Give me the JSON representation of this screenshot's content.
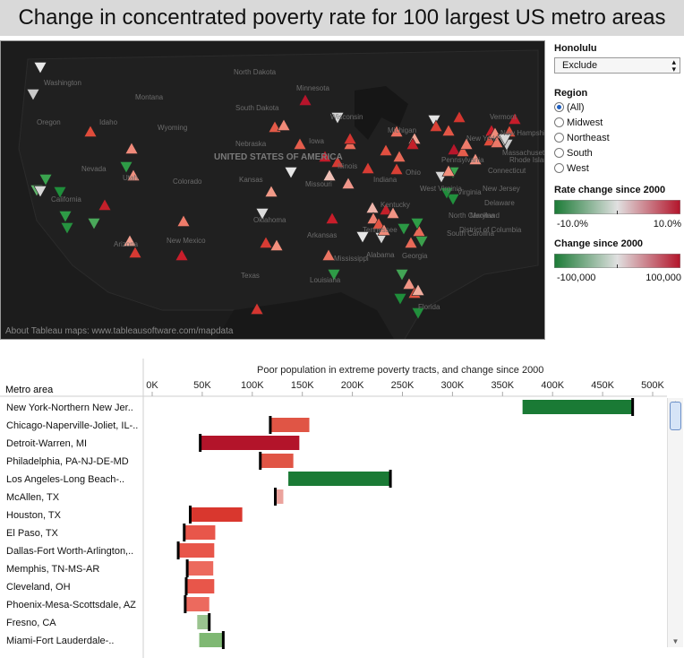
{
  "title": "Change in concentrated poverty rate for 100 largest US metro areas",
  "map": {
    "credit": "About Tableau maps: www.tableausoftware.com/mapdata",
    "labels": [
      "Washington",
      "Montana",
      "North Dakota",
      "South Dakota",
      "Wyoming",
      "Nebraska",
      "Nevada",
      "Utah",
      "Colorado",
      "Kansas",
      "Oklahoma",
      "UNITED STATES OF AMERICA",
      "Iowa",
      "Missouri",
      "Illinois",
      "Ohio",
      "Michigan",
      "Wisconsin",
      "Minnesota",
      "Indiana",
      "Kentucky",
      "Tennessee",
      "Arkansas",
      "Mississippi",
      "Alabama",
      "Georgia",
      "Texas",
      "New Mexico",
      "Arizona",
      "California",
      "Idaho",
      "Oregon",
      "Louisiana",
      "Florida",
      "South Carolina",
      "North Carolina",
      "Virginia",
      "West Virginia",
      "Pennsylvania",
      "New York",
      "Vermont",
      "New Hampshire",
      "Massachusetts",
      "Connecticut",
      "Rhode Island",
      "New Jersey",
      "Delaware",
      "Maryland",
      "District of Columbia"
    ],
    "markers": [
      {
        "dir": "down",
        "color": "#e8e8e8"
      },
      {
        "dir": "down",
        "color": "#c9c9c9"
      },
      {
        "dir": "up",
        "color": "#e04c3b"
      },
      {
        "dir": "up",
        "color": "#f08a7a"
      },
      {
        "dir": "down",
        "color": "#2e9b46"
      },
      {
        "dir": "up",
        "color": "#f09080"
      },
      {
        "dir": "down",
        "color": "#3aa34e"
      },
      {
        "dir": "down",
        "color": "#61b56c"
      },
      {
        "dir": "down",
        "color": "#d8d8d8"
      },
      {
        "dir": "down",
        "color": "#1f8e3b"
      },
      {
        "dir": "up",
        "color": "#c4202a"
      },
      {
        "dir": "down",
        "color": "#2e9b46"
      },
      {
        "dir": "down",
        "color": "#4aa85a"
      },
      {
        "dir": "down",
        "color": "#26923f"
      },
      {
        "dir": "up",
        "color": "#f2a090"
      },
      {
        "dir": "up",
        "color": "#d63a33"
      },
      {
        "dir": "up",
        "color": "#c91e2b"
      },
      {
        "dir": "up",
        "color": "#e35a48"
      },
      {
        "dir": "up",
        "color": "#ee7b6a"
      },
      {
        "dir": "down",
        "color": "#dcdcdc"
      },
      {
        "dir": "up",
        "color": "#f29a88"
      },
      {
        "dir": "up",
        "color": "#d83c34"
      },
      {
        "dir": "up",
        "color": "#c81d2a"
      },
      {
        "dir": "up",
        "color": "#e55d4c"
      },
      {
        "dir": "down",
        "color": "#e6e6e6"
      },
      {
        "dir": "up",
        "color": "#b7142b"
      },
      {
        "dir": "up",
        "color": "#f08a78"
      },
      {
        "dir": "up",
        "color": "#ec7563"
      },
      {
        "dir": "up",
        "color": "#f28f7c"
      },
      {
        "dir": "down",
        "color": "#1f8e3b"
      },
      {
        "dir": "up",
        "color": "#d43530"
      },
      {
        "dir": "up",
        "color": "#e96a58"
      },
      {
        "dir": "up",
        "color": "#d63a33"
      },
      {
        "dir": "down",
        "color": "#e6e6e6"
      },
      {
        "dir": "up",
        "color": "#eeb5ab"
      },
      {
        "dir": "up",
        "color": "#c21b2a"
      },
      {
        "dir": "up",
        "color": "#f0968a"
      },
      {
        "dir": "up",
        "color": "#d83c34"
      },
      {
        "dir": "up",
        "color": "#e24f40"
      },
      {
        "dir": "up",
        "color": "#c4202a"
      },
      {
        "dir": "down",
        "color": "#d4d4d4"
      },
      {
        "dir": "up",
        "color": "#d84035"
      },
      {
        "dir": "up",
        "color": "#ec7060"
      },
      {
        "dir": "up",
        "color": "#f3a393"
      },
      {
        "dir": "down",
        "color": "#3b9f4c"
      },
      {
        "dir": "up",
        "color": "#e86a58"
      },
      {
        "dir": "down",
        "color": "#2b9844"
      },
      {
        "dir": "down",
        "color": "#43a455"
      },
      {
        "dir": "up",
        "color": "#f09484"
      },
      {
        "dir": "up",
        "color": "#e25443"
      },
      {
        "dir": "up",
        "color": "#f0ad9f"
      },
      {
        "dir": "down",
        "color": "#1f8e3b"
      },
      {
        "dir": "down",
        "color": "#218f3c"
      },
      {
        "dir": "up",
        "color": "#e35646"
      },
      {
        "dir": "up",
        "color": "#d4362f"
      },
      {
        "dir": "down",
        "color": "#e3e3e3"
      },
      {
        "dir": "up",
        "color": "#d84035"
      },
      {
        "dir": "up",
        "color": "#b8162b"
      },
      {
        "dir": "up",
        "color": "#e55d4c"
      },
      {
        "dir": "up",
        "color": "#c91e2b"
      },
      {
        "dir": "up",
        "color": "#e04c3b"
      },
      {
        "dir": "up",
        "color": "#f08c7a"
      },
      {
        "dir": "up",
        "color": "#ec7868"
      },
      {
        "dir": "up",
        "color": "#c51c2a"
      },
      {
        "dir": "down",
        "color": "#cccccc"
      },
      {
        "dir": "down",
        "color": "#d8d8d8"
      },
      {
        "dir": "up",
        "color": "#d43530"
      },
      {
        "dir": "up",
        "color": "#ee8070"
      },
      {
        "dir": "up",
        "color": "#e25443"
      },
      {
        "dir": "up",
        "color": "#f0c0b6"
      },
      {
        "dir": "down",
        "color": "#2e9b46"
      },
      {
        "dir": "up",
        "color": "#c4202a"
      },
      {
        "dir": "up",
        "color": "#e86a58"
      },
      {
        "dir": "down",
        "color": "#d6d6d6"
      },
      {
        "dir": "down",
        "color": "#3aa34e"
      },
      {
        "dir": "up",
        "color": "#f28f7c"
      },
      {
        "dir": "down",
        "color": "#21903d"
      },
      {
        "dir": "up",
        "color": "#ee7b6a"
      },
      {
        "dir": "up",
        "color": "#f09080"
      },
      {
        "dir": "up",
        "color": "#e04c3b"
      },
      {
        "dir": "down",
        "color": "#e8e8e8"
      },
      {
        "dir": "up",
        "color": "#f08a78"
      },
      {
        "dir": "down",
        "color": "#2e9b46"
      },
      {
        "dir": "down",
        "color": "#d8d8d8"
      },
      {
        "dir": "down",
        "color": "#1f8e3b"
      },
      {
        "dir": "up",
        "color": "#e86a58"
      },
      {
        "dir": "up",
        "color": "#f09484"
      }
    ]
  },
  "controls": {
    "honolulu_label": "Honolulu",
    "honolulu_value": "Exclude",
    "region_label": "Region",
    "region_options": [
      "(All)",
      "Midwest",
      "Northeast",
      "South",
      "West"
    ],
    "region_selected": "(All)",
    "rate_legend_title": "Rate change since 2000",
    "rate_legend_min": "-10.0%",
    "rate_legend_max": "10.0%",
    "change_legend_title": "Change since 2000",
    "change_legend_min": "-100,000",
    "change_legend_max": "100,000",
    "colors": {
      "green": "#1a7a35",
      "grey": "#e0e0e0",
      "red": "#b3142a"
    }
  },
  "chart_data": {
    "type": "bar",
    "title": "Poor population in extreme poverty tracts, and change since 2000",
    "row_header": "Metro area",
    "xlim": [
      0,
      500000
    ],
    "ticks": [
      0,
      50000,
      100000,
      150000,
      200000,
      250000,
      300000,
      350000,
      400000,
      450000,
      500000
    ],
    "tick_labels": [
      "0K",
      "50K",
      "100K",
      "150K",
      "200K",
      "250K",
      "300K",
      "350K",
      "400K",
      "450K",
      "500K"
    ],
    "rows": [
      {
        "metro": "New York-Northern New Jer..",
        "value_2000": 480000,
        "value_now": 370000,
        "color": "#1a7a35"
      },
      {
        "metro": "Chicago-Naperville-Joliet, IL-..",
        "value_2000": 118000,
        "value_now": 157000,
        "color": "#e05545"
      },
      {
        "metro": "Detroit-Warren, MI",
        "value_2000": 48000,
        "value_now": 147000,
        "color": "#b3142a"
      },
      {
        "metro": "Philadelphia, PA-NJ-DE-MD",
        "value_2000": 108000,
        "value_now": 141000,
        "color": "#e05545"
      },
      {
        "metro": "Los Angeles-Long Beach-..",
        "value_2000": 238000,
        "value_now": 136000,
        "color": "#1a7a35"
      },
      {
        "metro": "McAllen, TX",
        "value_2000": 123000,
        "value_now": 131000,
        "color": "#eba39d"
      },
      {
        "metro": "Houston, TX",
        "value_2000": 38000,
        "value_now": 90000,
        "color": "#d9372e"
      },
      {
        "metro": "El Paso, TX",
        "value_2000": 32000,
        "value_now": 63000,
        "color": "#e8564a"
      },
      {
        "metro": "Dallas-Fort Worth-Arlington,..",
        "value_2000": 26000,
        "value_now": 62000,
        "color": "#e8564a"
      },
      {
        "metro": "Memphis, TN-MS-AR",
        "value_2000": 35000,
        "value_now": 61000,
        "color": "#ec6a5e"
      },
      {
        "metro": "Cleveland, OH",
        "value_2000": 34000,
        "value_now": 62000,
        "color": "#e8564a"
      },
      {
        "metro": "Phoenix-Mesa-Scottsdale, AZ",
        "value_2000": 33000,
        "value_now": 57000,
        "color": "#ec6a5e"
      },
      {
        "metro": "Fresno, CA",
        "value_2000": 57000,
        "value_now": 45000,
        "color": "#9ac48f"
      },
      {
        "metro": "Miami-Fort Lauderdale-..",
        "value_2000": 71000,
        "value_now": 47000,
        "color": "#7fb873"
      }
    ]
  }
}
